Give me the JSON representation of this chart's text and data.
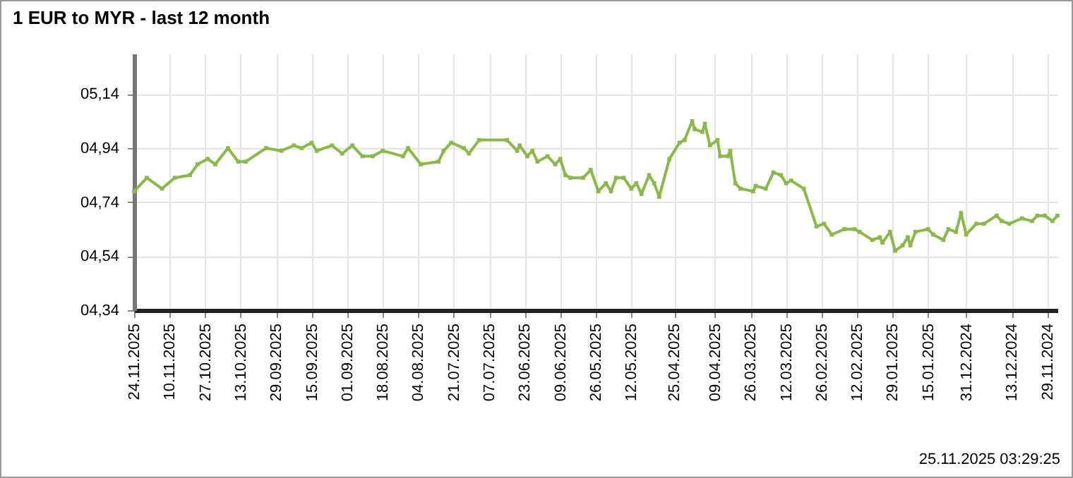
{
  "chart_data": {
    "type": "line",
    "title": "1 EUR to MYR - last 12 month",
    "annotations": [
      "25.11.2025 03:29:25"
    ],
    "x": [
      "2025-11-24",
      "2025-11-19",
      "2025-11-13",
      "2025-11-08",
      "2025-11-02",
      "2025-10-30",
      "2025-10-26",
      "2025-10-23",
      "2025-10-18",
      "2025-10-14",
      "2025-10-11",
      "2025-10-03",
      "2025-09-27",
      "2025-09-22",
      "2025-09-19",
      "2025-09-15",
      "2025-09-13",
      "2025-09-07",
      "2025-09-03",
      "2025-08-30",
      "2025-08-26",
      "2025-08-22",
      "2025-08-18",
      "2025-08-10",
      "2025-08-08",
      "2025-08-03",
      "2025-07-27",
      "2025-07-25",
      "2025-07-22",
      "2025-07-17",
      "2025-07-15",
      "2025-07-11",
      "2025-06-30",
      "2025-06-26",
      "2025-06-25",
      "2025-06-22",
      "2025-06-20",
      "2025-06-18",
      "2025-06-14",
      "2025-06-11",
      "2025-06-09",
      "2025-06-07",
      "2025-06-05",
      "2025-05-31",
      "2025-05-28",
      "2025-05-25",
      "2025-05-22",
      "2025-05-20",
      "2025-05-18",
      "2025-05-15",
      "2025-05-12",
      "2025-05-10",
      "2025-05-08",
      "2025-05-05",
      "2025-05-03",
      "2025-05-01",
      "2025-04-27",
      "2025-04-23",
      "2025-04-21",
      "2025-04-18",
      "2025-04-17",
      "2025-04-14",
      "2025-04-13",
      "2025-04-11",
      "2025-04-08",
      "2025-04-07",
      "2025-04-04",
      "2025-04-03",
      "2025-04-01",
      "2025-03-30",
      "2025-03-25",
      "2025-03-24",
      "2025-03-20",
      "2025-03-17",
      "2025-03-14",
      "2025-03-12",
      "2025-03-10",
      "2025-03-05",
      "2025-02-28",
      "2025-02-25",
      "2025-02-22",
      "2025-02-17",
      "2025-02-13",
      "2025-02-11",
      "2025-02-06",
      "2025-02-03",
      "2025-02-02",
      "2025-01-30",
      "2025-01-28",
      "2025-01-25",
      "2025-01-23",
      "2025-01-22",
      "2025-01-20",
      "2025-01-15",
      "2025-01-13",
      "2025-01-09",
      "2025-01-07",
      "2025-01-04",
      "2025-01-02",
      "2024-12-31",
      "2024-12-27",
      "2024-12-24",
      "2024-12-19",
      "2024-12-17",
      "2024-12-14",
      "2024-12-09",
      "2024-12-05",
      "2024-12-03",
      "2024-11-30",
      "2024-11-27",
      "2024-11-25"
    ],
    "series": [
      {
        "color": "#8bb84a",
        "values": [
          4.78,
          4.83,
          4.79,
          4.83,
          4.84,
          4.88,
          4.9,
          4.88,
          4.94,
          4.89,
          4.89,
          4.94,
          4.93,
          4.95,
          4.94,
          4.96,
          4.93,
          4.95,
          4.92,
          4.95,
          4.91,
          4.91,
          4.93,
          4.91,
          4.94,
          4.88,
          4.89,
          4.93,
          4.96,
          4.94,
          4.92,
          4.97,
          4.97,
          4.93,
          4.95,
          4.91,
          4.93,
          4.89,
          4.91,
          4.88,
          4.9,
          4.84,
          4.83,
          4.83,
          4.86,
          4.78,
          4.81,
          4.78,
          4.83,
          4.83,
          4.79,
          4.81,
          4.77,
          4.84,
          4.81,
          4.76,
          4.9,
          4.96,
          4.97,
          5.04,
          5.01,
          5.0,
          5.03,
          4.95,
          4.97,
          4.91,
          4.91,
          4.93,
          4.81,
          4.79,
          4.78,
          4.8,
          4.79,
          4.85,
          4.84,
          4.81,
          4.82,
          4.79,
          4.65,
          4.66,
          4.62,
          4.64,
          4.64,
          4.63,
          4.6,
          4.61,
          4.59,
          4.63,
          4.56,
          4.58,
          4.61,
          4.58,
          4.63,
          4.64,
          4.62,
          4.6,
          4.64,
          4.63,
          4.7,
          4.62,
          4.66,
          4.66,
          4.69,
          4.67,
          4.66,
          4.68,
          4.67,
          4.69,
          4.69,
          4.67,
          4.69
        ]
      }
    ],
    "xlim": [
      "2025-11-24",
      "2024-11-25"
    ],
    "xticks": [
      {
        "value": "2025-11-24",
        "label": "24.11.2025"
      },
      {
        "value": "2025-11-10",
        "label": "10.11.2025"
      },
      {
        "value": "2025-10-27",
        "label": "27.10.2025"
      },
      {
        "value": "2025-10-13",
        "label": "13.10.2025"
      },
      {
        "value": "2025-09-29",
        "label": "29.09.2025"
      },
      {
        "value": "2025-09-15",
        "label": "15.09.2025"
      },
      {
        "value": "2025-09-01",
        "label": "01.09.2025"
      },
      {
        "value": "2025-08-18",
        "label": "18.08.2025"
      },
      {
        "value": "2025-08-04",
        "label": "04.08.2025"
      },
      {
        "value": "2025-07-21",
        "label": "21.07.2025"
      },
      {
        "value": "2025-07-07",
        "label": "07.07.2025"
      },
      {
        "value": "2025-06-23",
        "label": "23.06.2025"
      },
      {
        "value": "2025-06-09",
        "label": "09.06.2025"
      },
      {
        "value": "2025-05-26",
        "label": "26.05.2025"
      },
      {
        "value": "2025-05-12",
        "label": "12.05.2025"
      },
      {
        "value": "2025-04-25",
        "label": "25.04.2025"
      },
      {
        "value": "2025-04-09",
        "label": "09.04.2025"
      },
      {
        "value": "2025-03-26",
        "label": "26.03.2025"
      },
      {
        "value": "2025-03-12",
        "label": "12.03.2025"
      },
      {
        "value": "2025-02-26",
        "label": "26.02.2025"
      },
      {
        "value": "2025-02-12",
        "label": "12.02.2025"
      },
      {
        "value": "2025-01-29",
        "label": "29.01.2025"
      },
      {
        "value": "2025-01-15",
        "label": "15.01.2025"
      },
      {
        "value": "2024-12-31",
        "label": "31.12.2024"
      },
      {
        "value": "2024-12-13",
        "label": "13.12.2024"
      },
      {
        "value": "2024-11-29",
        "label": "29.11.2024"
      }
    ],
    "ylim": [
      4.34,
      5.29
    ],
    "yticks": [
      {
        "value": 4.34,
        "label": "04,34"
      },
      {
        "value": 4.54,
        "label": "04,54"
      },
      {
        "value": 4.74,
        "label": "04,74"
      },
      {
        "value": 4.94,
        "label": "04,94"
      },
      {
        "value": 5.14,
        "label": "05,14"
      }
    ],
    "grid": true,
    "marker": "square",
    "line_style": "solid"
  }
}
